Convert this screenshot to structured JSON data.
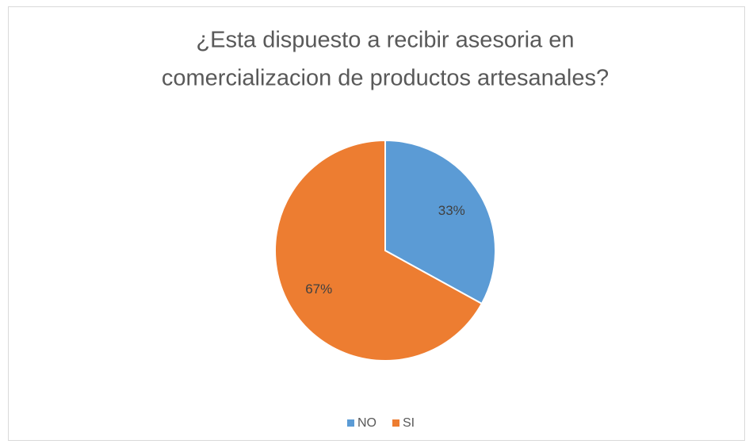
{
  "chart_data": {
    "type": "pie",
    "title": [
      "¿Esta dispuesto a recibir asesoria en",
      "comercializacion de productos artesanales?"
    ],
    "categories": [
      "NO",
      "SI"
    ],
    "values": [
      33,
      67
    ],
    "value_labels": [
      "33%",
      "67%"
    ],
    "colors": [
      "#5b9bd5",
      "#ed7d31"
    ],
    "legend": "bottom"
  }
}
